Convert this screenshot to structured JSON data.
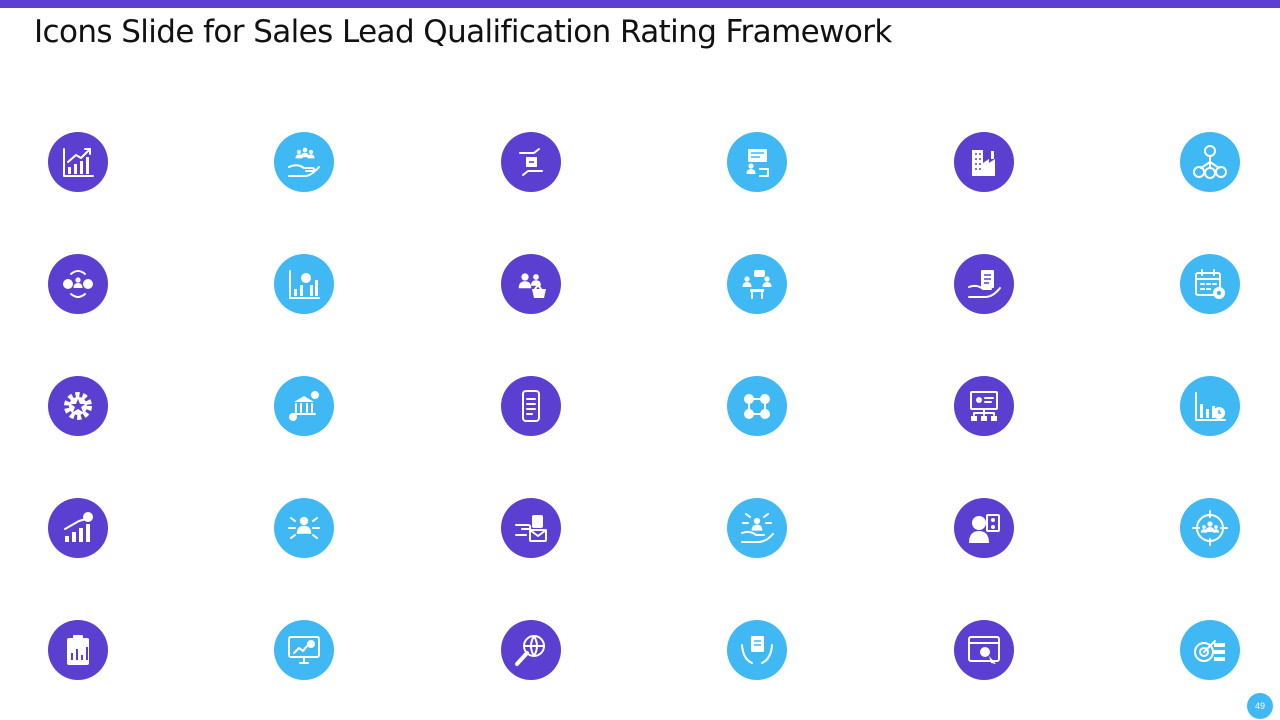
{
  "slide": {
    "title": "Icons Slide for Sales Lead Qualification Rating Framework",
    "page_number": "49"
  },
  "colors": {
    "accent": "#5b3fd1",
    "secondary": "#40b8f4",
    "icon_fg": "#ffffff"
  },
  "icons": [
    {
      "name": "growth-chart-icon",
      "color": "purple"
    },
    {
      "name": "hand-holding-team-icon",
      "color": "blue"
    },
    {
      "name": "hands-exchange-box-icon",
      "color": "purple"
    },
    {
      "name": "presenter-board-icon",
      "color": "blue"
    },
    {
      "name": "factory-building-icon",
      "color": "purple"
    },
    {
      "name": "org-network-icon",
      "color": "blue"
    },
    {
      "name": "dollar-user-gear-cycle-icon",
      "color": "purple"
    },
    {
      "name": "bar-chart-dollar-icon",
      "color": "blue"
    },
    {
      "name": "users-shopping-basket-icon",
      "color": "purple"
    },
    {
      "name": "team-meeting-icon",
      "color": "blue"
    },
    {
      "name": "hand-invoice-icon",
      "color": "purple"
    },
    {
      "name": "calendar-gear-icon",
      "color": "blue"
    },
    {
      "name": "gear-star-icon",
      "color": "purple"
    },
    {
      "name": "bank-dollar-icon",
      "color": "blue"
    },
    {
      "name": "mobile-checklist-icon",
      "color": "purple"
    },
    {
      "name": "connected-users-icon",
      "color": "blue"
    },
    {
      "name": "presentation-flowchart-icon",
      "color": "purple"
    },
    {
      "name": "chart-clock-icon",
      "color": "blue"
    },
    {
      "name": "growth-bars-dollar-icon",
      "color": "purple"
    },
    {
      "name": "person-directions-icon",
      "color": "blue"
    },
    {
      "name": "hand-phone-mail-icon",
      "color": "purple"
    },
    {
      "name": "hand-user-arrows-icon",
      "color": "blue"
    },
    {
      "name": "woman-document-users-icon",
      "color": "purple"
    },
    {
      "name": "target-team-icon",
      "color": "blue"
    },
    {
      "name": "clipboard-chart-icon",
      "color": "purple"
    },
    {
      "name": "monitor-chart-icon",
      "color": "blue"
    },
    {
      "name": "magnifier-globe-icon",
      "color": "purple"
    },
    {
      "name": "hands-document-icon",
      "color": "blue"
    },
    {
      "name": "browser-clock-cursor-icon",
      "color": "purple"
    },
    {
      "name": "target-list-icon",
      "color": "blue"
    }
  ]
}
